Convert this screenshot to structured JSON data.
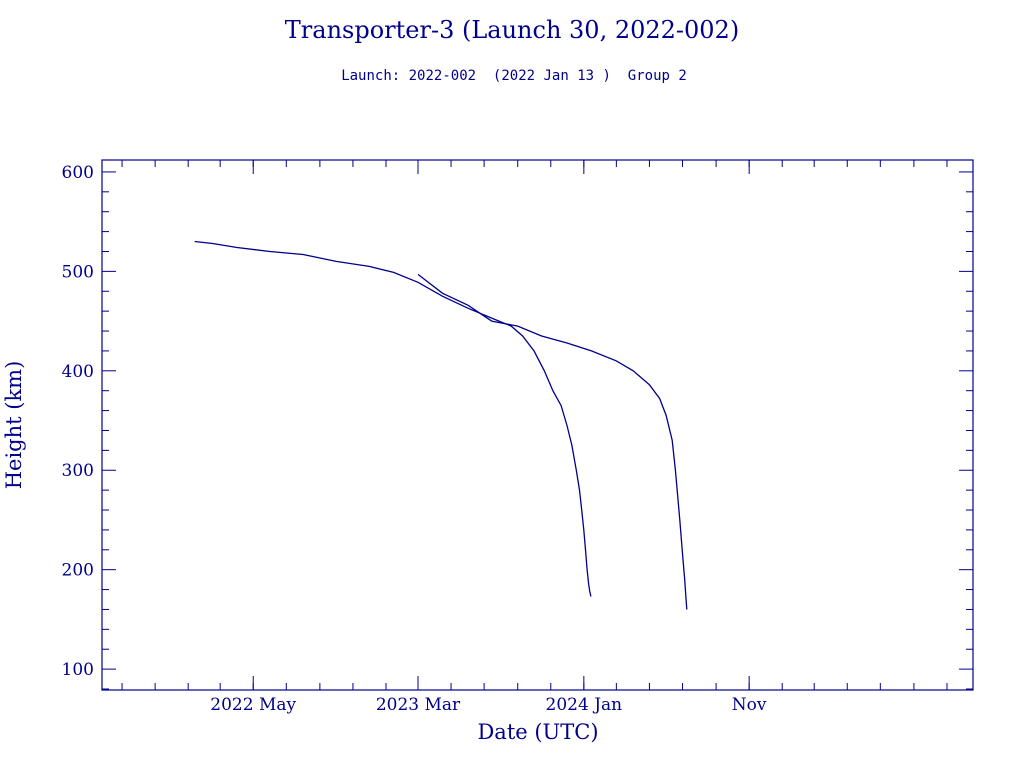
{
  "chart_data": {
    "type": "line",
    "title": "Transporter-3 (Launch 30, 2022-002)",
    "subtitle": "Launch: 2022-002  (2022 Jan 13 )  Group 2",
    "xlabel": "Date (UTC)",
    "ylabel": "Height (km)",
    "xlim": [
      "2021-07-26",
      "2025-12-19"
    ],
    "ylim": [
      79,
      612
    ],
    "x_ticks": [
      {
        "date": "2022-05-01",
        "label": "2022 May"
      },
      {
        "date": "2023-03-01",
        "label": "2023 Mar"
      },
      {
        "date": "2024-01-01",
        "label": "2024 Jan"
      },
      {
        "date": "2024-11-01",
        "label": "Nov"
      }
    ],
    "y_ticks": [
      100,
      200,
      300,
      400,
      500,
      600
    ],
    "grid": false,
    "legend": "none",
    "color": "#00008b",
    "series": [
      {
        "x": [
          "2022-01-13",
          "2022-02-15",
          "2022-04-01",
          "2022-06-01",
          "2022-08-01",
          "2022-10-01",
          "2022-12-01",
          "2023-01-15",
          "2023-03-01",
          "2023-04-15",
          "2023-06-01",
          "2023-07-15",
          "2023-08-20",
          "2023-09-10",
          "2023-10-01",
          "2023-10-20",
          "2023-11-05",
          "2023-11-20",
          "2023-12-01",
          "2023-12-10",
          "2023-12-18",
          "2023-12-24",
          "2023-12-28",
          "2024-01-01",
          "2024-01-04",
          "2024-01-07",
          "2024-01-10",
          "2024-01-12",
          "2024-01-14"
        ],
        "y": [
          530,
          528,
          524,
          520,
          517,
          510,
          505,
          499,
          489,
          475,
          463,
          453,
          445,
          435,
          420,
          400,
          380,
          365,
          345,
          325,
          300,
          280,
          260,
          240,
          220,
          200,
          185,
          178,
          173
        ]
      },
      {
        "x": [
          "2023-03-01",
          "2023-04-15",
          "2023-06-01",
          "2023-07-15",
          "2023-09-01",
          "2023-10-15",
          "2023-12-01",
          "2024-01-15",
          "2024-03-01",
          "2024-04-01",
          "2024-05-01",
          "2024-05-20",
          "2024-06-01",
          "2024-06-12",
          "2024-06-18",
          "2024-06-22",
          "2024-06-26",
          "2024-06-29",
          "2024-07-02",
          "2024-07-05",
          "2024-07-07",
          "2024-07-09"
        ],
        "y": [
          497,
          478,
          466,
          450,
          445,
          435,
          428,
          420,
          410,
          400,
          386,
          372,
          355,
          330,
          300,
          275,
          250,
          230,
          210,
          190,
          175,
          160
        ]
      }
    ]
  }
}
